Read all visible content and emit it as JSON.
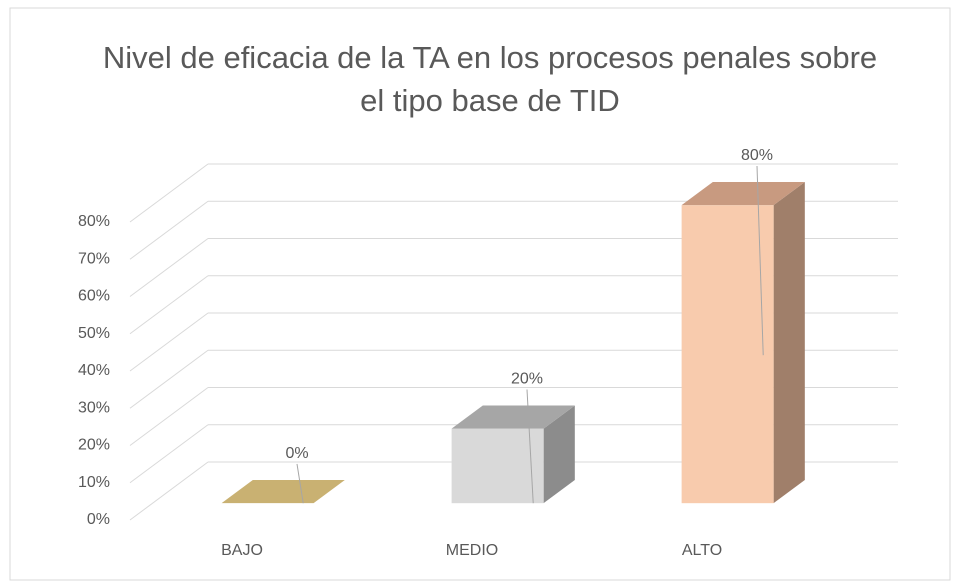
{
  "chart_data": {
    "type": "bar3d",
    "title": "Nivel de eficacia de la TA en los procesos penales sobre el tipo base de TID",
    "categories": [
      "BAJO",
      "MEDIO",
      "ALTO"
    ],
    "values": [
      0,
      20,
      80
    ],
    "value_labels": [
      "0%",
      "20%",
      "80%"
    ],
    "colors": [
      {
        "front": "#c9b172",
        "top": "#c9b172",
        "side": "#a89055"
      },
      {
        "front": "#d9d9d9",
        "top": "#a6a6a6",
        "side": "#8c8c8c"
      },
      {
        "front": "#f8cbad",
        "top": "#c89a80",
        "side": "#a07f6a"
      }
    ],
    "ylim": [
      0,
      80
    ],
    "yticks": [
      {
        "value": 0,
        "label": "0%"
      },
      {
        "value": 10,
        "label": "10%"
      },
      {
        "value": 20,
        "label": "20%"
      },
      {
        "value": 30,
        "label": "30%"
      },
      {
        "value": 40,
        "label": "40%"
      },
      {
        "value": 50,
        "label": "50%"
      },
      {
        "value": 60,
        "label": "60%"
      },
      {
        "value": 70,
        "label": "70%"
      },
      {
        "value": 80,
        "label": "80%"
      }
    ],
    "grid": true
  }
}
